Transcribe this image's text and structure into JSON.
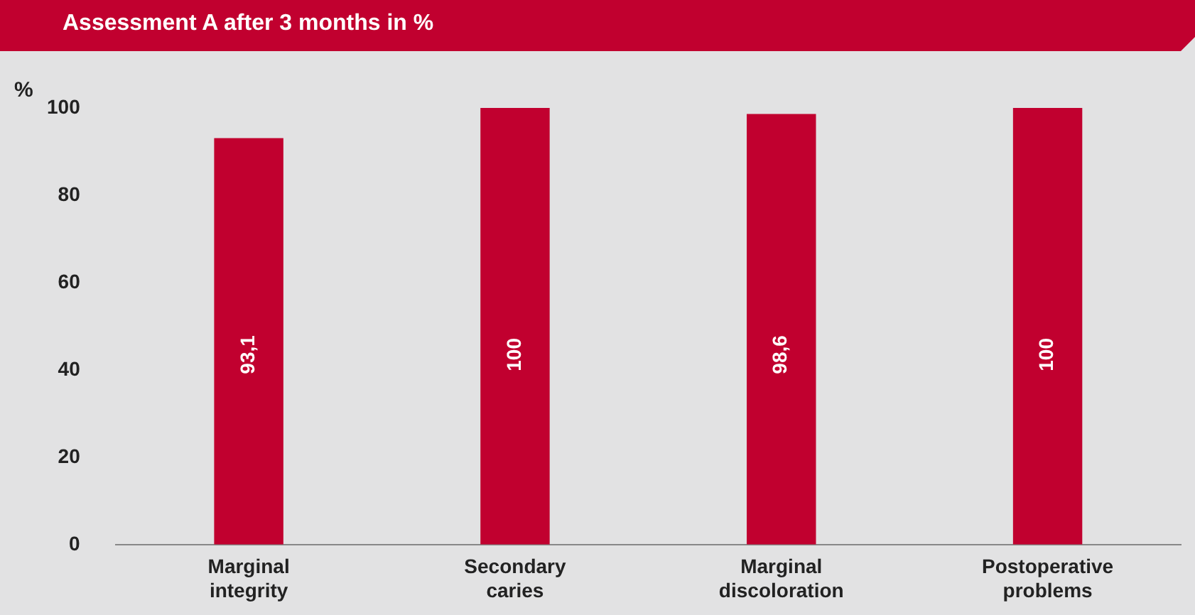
{
  "chart_data": {
    "type": "bar",
    "title": "Assessment A after 3 months in %",
    "ylabel": "%",
    "categories": [
      "Marginal integrity",
      "Secondary caries",
      "Marginal discoloration",
      "Postoperative problems"
    ],
    "values": [
      93.1,
      100,
      98.6,
      100
    ],
    "value_labels": [
      "93,1",
      "100",
      "98,6",
      "100"
    ],
    "color": "#c1002f",
    "ylim": [
      0,
      100
    ],
    "yticks": [
      0,
      20,
      40,
      60,
      80,
      100
    ],
    "grid": false,
    "legend": false
  }
}
